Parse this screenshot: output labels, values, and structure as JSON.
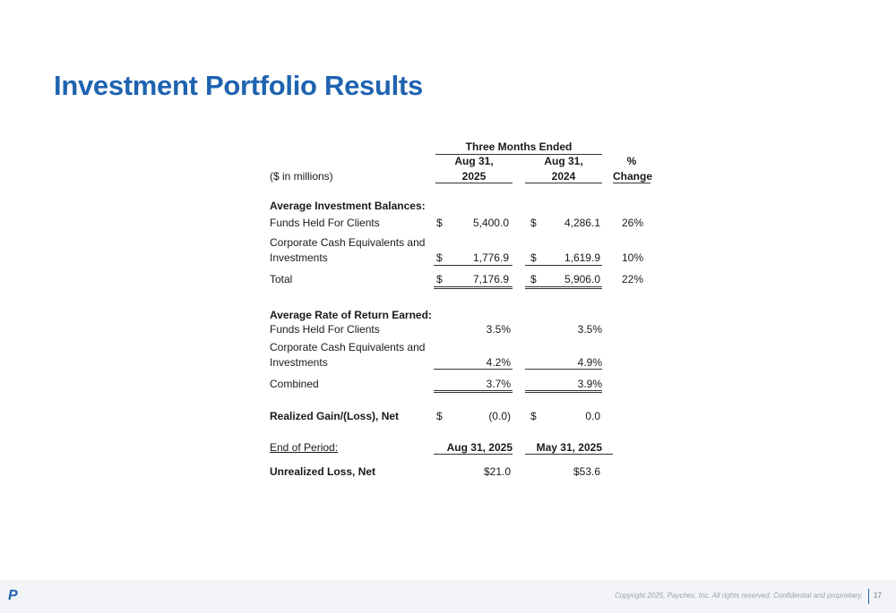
{
  "title": "Investment Portfolio Results",
  "table": {
    "header_group": "Three Months Ended",
    "col1_line1": "Aug 31,",
    "col1_line2": "2025",
    "col2_line1": "Aug 31,",
    "col2_line2": "2024",
    "col3_line1": "%",
    "col3_line2": "Change",
    "units": "($ in millions)",
    "sec1_header": "Average Investment Balances:",
    "funds_label": "Funds Held For Clients",
    "funds_cur1": "$",
    "funds_v1": "5,400.0",
    "funds_cur2": "$",
    "funds_v2": "4,286.1",
    "funds_pct": "26%",
    "corp_label1": "Corporate Cash Equivalents and",
    "corp_label2": "Investments",
    "corp_cur1": "$",
    "corp_v1": "1,776.9",
    "corp_cur2": "$",
    "corp_v2": "1,619.9",
    "corp_pct": "10%",
    "total_label": "Total",
    "total_cur1": "$",
    "total_v1": "7,176.9",
    "total_cur2": "$",
    "total_v2": "5,906.0",
    "total_pct": "22%",
    "sec2_header": "Average Rate of Return Earned:",
    "rr_funds_label": "Funds Held For Clients",
    "rr_funds_v1": "3.5%",
    "rr_funds_v2": "3.5%",
    "rr_corp_label1": "Corporate Cash Equivalents and",
    "rr_corp_label2": "Investments",
    "rr_corp_v1": "4.2%",
    "rr_corp_v2": "4.9%",
    "combined_label": "Combined",
    "combined_v1": "3.7%",
    "combined_v2": "3.9%",
    "gain_label": "Realized Gain/(Loss), Net",
    "gain_cur1": "$",
    "gain_v1": "(0.0)",
    "gain_cur2": "$",
    "gain_v2": "0.0",
    "eop_label": "End of Period:",
    "eop_v1": "Aug 31, 2025",
    "eop_v2": "May 31, 2025",
    "unreal_label": "Unrealized Loss, Net",
    "unreal_v1": "$21.0",
    "unreal_v2": "$53.6"
  },
  "footer": {
    "logo": "P",
    "copyright": "Copyright 2025, Paychex, Inc. All rights reserved. Confidential and proprietary.",
    "page": "17"
  },
  "colors": {
    "title": "#1f63b0",
    "footer_bg": "#f2f4f7"
  }
}
